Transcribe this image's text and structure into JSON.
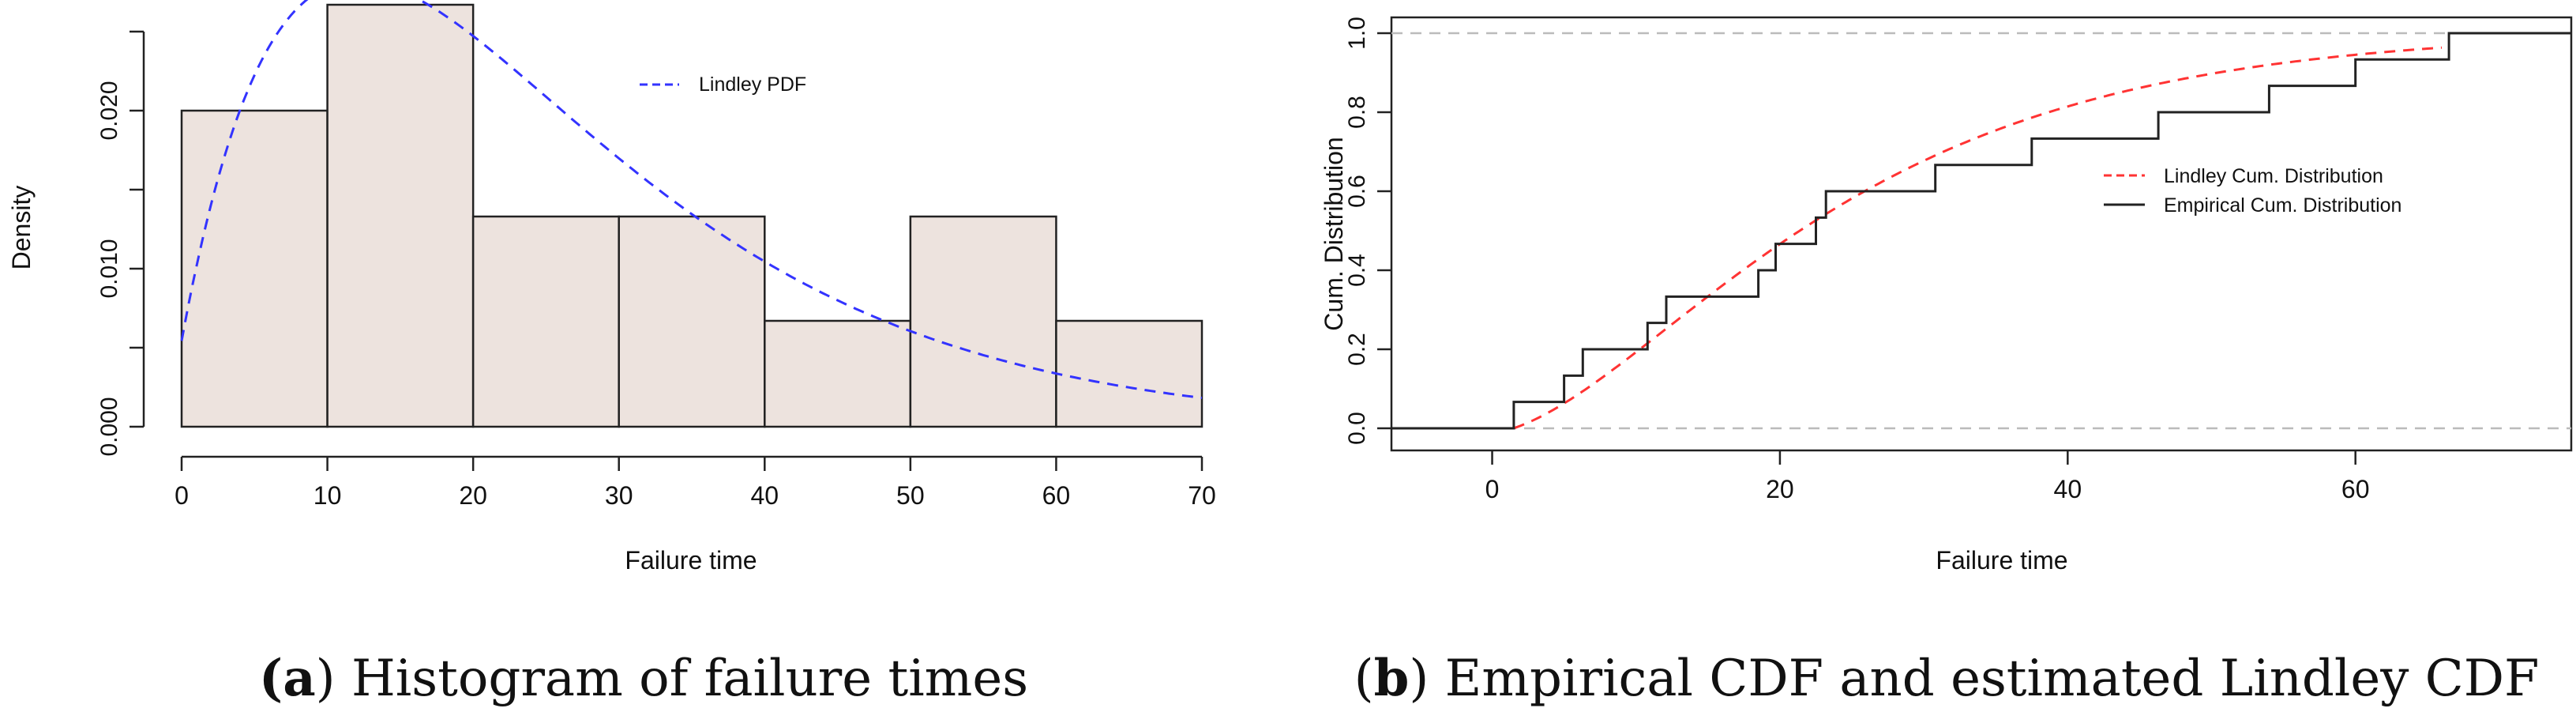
{
  "chart_data": [
    {
      "type": "bar",
      "panel_id": "a",
      "subtype": "histogram",
      "caption_label": "a",
      "caption_text": "Histogram of failure times",
      "xlabel": "Failure time",
      "ylabel": "Density",
      "xlim": [
        0,
        70
      ],
      "ylim": [
        0,
        0.025
      ],
      "xticks": [
        "0",
        "10",
        "20",
        "30",
        "40",
        "50",
        "60",
        "70"
      ],
      "yticks": [
        "0.000",
        "0.010",
        "0.020"
      ],
      "bins": [
        {
          "from": 0,
          "to": 10,
          "density": 0.02
        },
        {
          "from": 10,
          "to": 20,
          "density": 0.0267
        },
        {
          "from": 20,
          "to": 30,
          "density": 0.0133
        },
        {
          "from": 30,
          "to": 40,
          "density": 0.0133
        },
        {
          "from": 40,
          "to": 50,
          "density": 0.0067
        },
        {
          "from": 50,
          "to": 60,
          "density": 0.0133
        },
        {
          "from": 60,
          "to": 70,
          "density": 0.0067
        }
      ],
      "bar_color": "#ede3de",
      "curve": {
        "name": "Lindley PDF",
        "theta": 0.0765,
        "color": "#3333ff",
        "style": "dashed"
      },
      "legend": {
        "entries": [
          "Lindley PDF"
        ],
        "placement": "top-center"
      }
    },
    {
      "type": "line",
      "panel_id": "b",
      "caption_label": "b",
      "caption_text": "Empirical CDF and estimated Lindley CDF",
      "xlabel": "Failure time",
      "ylabel": "Cum. Distribution",
      "xlim": [
        -7,
        75
      ],
      "ylim": [
        0,
        1
      ],
      "xticks": [
        "0",
        "20",
        "40",
        "60"
      ],
      "yticks": [
        "0.0",
        "0.2",
        "0.4",
        "0.6",
        "0.8",
        "1.0"
      ],
      "series": [
        {
          "name": "Lindley Cum. Distribution",
          "theta": 0.0765,
          "color": "#ff3333",
          "style": "dashed"
        },
        {
          "name": "Empirical Cum. Distribution",
          "color": "#222222",
          "style": "step",
          "x": [
            1.5,
            5,
            6.3,
            10.8,
            12.1,
            18.5,
            19.7,
            22.5,
            23.2,
            30.8,
            37.5,
            46.3,
            54,
            60,
            66.5
          ],
          "y": [
            0.0667,
            0.1333,
            0.2,
            0.2667,
            0.3333,
            0.4,
            0.4667,
            0.5333,
            0.6,
            0.6667,
            0.7333,
            0.8,
            0.8667,
            0.9333,
            1.0
          ]
        }
      ],
      "reference_lines": [
        0,
        1
      ],
      "legend": {
        "entries": [
          "Lindley Cum. Distribution",
          "Empirical Cum. Distribution"
        ],
        "placement": "right-center"
      }
    }
  ]
}
